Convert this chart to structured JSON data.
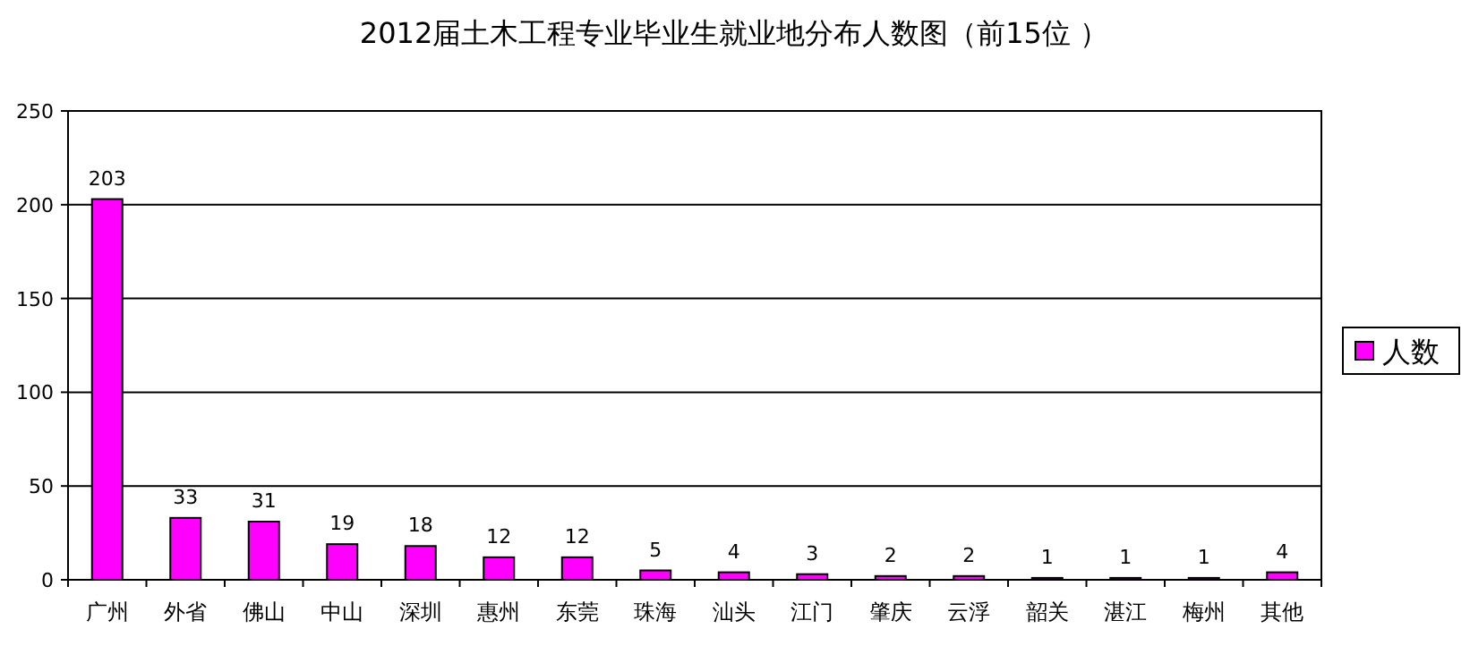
{
  "chart_data": {
    "type": "bar",
    "title": "2012届土木工程专业毕业生就业地分布人数图（前15位 ）",
    "categories": [
      "广州",
      "外省",
      "佛山",
      "中山",
      "深圳",
      "惠州",
      "东莞",
      "珠海",
      "汕头",
      "江门",
      "肇庆",
      "云浮",
      "韶关",
      "湛江",
      "梅州",
      "其他"
    ],
    "series": [
      {
        "name": "人数",
        "color": "#ff00ff",
        "values": [
          203,
          33,
          31,
          19,
          18,
          12,
          12,
          5,
          4,
          3,
          2,
          2,
          1,
          1,
          1,
          4
        ]
      }
    ],
    "ylim": [
      0,
      250
    ],
    "yticks": [
      0,
      50,
      100,
      150,
      200,
      250
    ],
    "grid": "y",
    "legend": "right",
    "data_labels": true
  }
}
